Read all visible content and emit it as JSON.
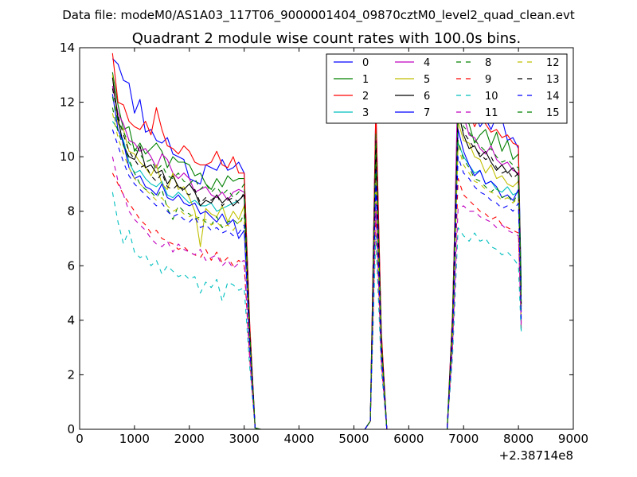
{
  "chart_data": {
    "type": "line",
    "suptitle": "Data file: modeM0/AS1A03_117T06_9000001404_09870cztM0_level2_quad_clean.evt",
    "title": "Quadrant 2 module wise count rates with 100.0s bins.",
    "xlabel": "",
    "ylabel": "",
    "x_offset_label": "+2.38714e8",
    "xlim": [
      0,
      9000
    ],
    "ylim": [
      0,
      14
    ],
    "xticks": [
      0,
      1000,
      2000,
      3000,
      4000,
      5000,
      6000,
      7000,
      8000,
      9000
    ],
    "yticks": [
      0,
      2,
      4,
      6,
      8,
      10,
      12,
      14
    ],
    "grid": false,
    "legend_position": "top-right",
    "legend_columns": 4,
    "x": [
      600,
      700,
      800,
      900,
      1000,
      1100,
      1200,
      1300,
      1400,
      1500,
      1600,
      1700,
      1800,
      1900,
      2000,
      2100,
      2200,
      2300,
      2400,
      2500,
      2600,
      2700,
      2800,
      2900,
      3000,
      3100,
      3200,
      3300,
      5200,
      5300,
      5400,
      5500,
      5600,
      5700,
      6700,
      6800,
      6900,
      7000,
      7100,
      7200,
      7300,
      7400,
      7500,
      7600,
      7700,
      7800,
      7900,
      8000,
      8050
    ],
    "series": [
      {
        "name": "0",
        "color": "#0000ff",
        "dash": "solid",
        "values": [
          13.6,
          13.4,
          12.8,
          12.7,
          11.6,
          12.1,
          10.9,
          11.0,
          10.6,
          10.5,
          10.7,
          10.1,
          10.0,
          9.9,
          9.2,
          9.1,
          9.0,
          9.7,
          9.6,
          9.5,
          9.9,
          9.5,
          9.6,
          9.8,
          9.4,
          3.8,
          0.05,
          0.0,
          0.0,
          0.3,
          11.8,
          3.5,
          0.0,
          0.0,
          0.0,
          4.3,
          12.1,
          11.9,
          11.3,
          11.6,
          11.1,
          11.4,
          11.0,
          11.5,
          11.4,
          10.6,
          10.7,
          10.3,
          5.3
        ]
      },
      {
        "name": "1",
        "color": "#008000",
        "dash": "solid",
        "values": [
          13.1,
          11.9,
          11.0,
          11.1,
          10.2,
          10.5,
          10.1,
          10.3,
          10.5,
          10.2,
          9.6,
          10.0,
          9.8,
          9.8,
          9.7,
          9.3,
          9.4,
          9.0,
          8.8,
          9.2,
          8.9,
          9.3,
          9.1,
          9.2,
          9.2,
          3.6,
          0.05,
          0.0,
          0.0,
          0.3,
          11.1,
          3.4,
          0.0,
          0.0,
          0.0,
          4.1,
          11.9,
          11.4,
          11.2,
          10.5,
          10.8,
          11.0,
          10.4,
          10.9,
          10.2,
          10.6,
          9.9,
          10.1,
          5.1
        ]
      },
      {
        "name": "2",
        "color": "#ff0000",
        "dash": "solid",
        "values": [
          13.8,
          12.0,
          11.9,
          11.3,
          11.1,
          11.0,
          11.3,
          10.8,
          11.8,
          11.0,
          10.4,
          10.3,
          10.1,
          10.4,
          10.2,
          9.8,
          9.7,
          9.7,
          9.8,
          10.2,
          9.7,
          9.6,
          10.0,
          9.4,
          9.4,
          3.9,
          0.05,
          0.0,
          0.0,
          0.3,
          11.9,
          3.6,
          0.0,
          0.0,
          0.0,
          4.3,
          12.4,
          11.8,
          11.7,
          11.1,
          11.5,
          11.2,
          10.9,
          11.0,
          10.7,
          10.8,
          10.5,
          10.4,
          3.9
        ]
      },
      {
        "name": "3",
        "color": "#00bfbf",
        "dash": "solid",
        "values": [
          11.3,
          11.0,
          10.6,
          9.8,
          9.4,
          9.5,
          9.2,
          9.0,
          8.9,
          9.1,
          8.6,
          8.5,
          8.7,
          8.5,
          8.3,
          8.4,
          8.2,
          8.2,
          8.3,
          8.0,
          8.1,
          8.2,
          8.3,
          8.4,
          8.6,
          3.3,
          0.05,
          0.0,
          0.0,
          0.3,
          9.8,
          3.0,
          0.0,
          0.0,
          0.0,
          3.7,
          10.5,
          10.0,
          9.7,
          9.4,
          9.5,
          9.0,
          9.1,
          8.8,
          8.7,
          8.9,
          8.6,
          8.7,
          3.6
        ]
      },
      {
        "name": "4",
        "color": "#bf00bf",
        "dash": "solid",
        "values": [
          12.6,
          11.6,
          11.2,
          10.6,
          10.5,
          10.2,
          10.3,
          10.0,
          9.6,
          10.1,
          9.9,
          9.4,
          9.2,
          9.4,
          9.2,
          8.7,
          8.8,
          8.9,
          8.6,
          8.5,
          8.7,
          8.4,
          8.7,
          8.8,
          8.7,
          3.5,
          0.05,
          0.0,
          0.0,
          0.3,
          10.8,
          3.2,
          0.0,
          0.0,
          0.0,
          4.0,
          13.2,
          11.5,
          10.8,
          10.7,
          10.3,
          10.1,
          10.4,
          9.9,
          9.7,
          9.8,
          9.5,
          9.4,
          4.6
        ]
      },
      {
        "name": "5",
        "color": "#bfbf00",
        "dash": "solid",
        "values": [
          13.0,
          11.2,
          11.0,
          10.2,
          10.1,
          9.8,
          9.6,
          9.3,
          9.7,
          9.0,
          8.8,
          9.4,
          8.8,
          8.9,
          8.5,
          8.0,
          6.7,
          8.1,
          7.9,
          7.8,
          8.2,
          7.6,
          8.0,
          7.7,
          8.2,
          3.4,
          0.05,
          0.0,
          0.0,
          0.3,
          10.1,
          3.1,
          0.0,
          0.0,
          0.0,
          3.8,
          11.3,
          10.6,
          10.5,
          10.0,
          9.9,
          9.4,
          9.7,
          9.2,
          9.3,
          9.0,
          8.9,
          9.1,
          4.4
        ]
      },
      {
        "name": "6",
        "color": "#000000",
        "dash": "solid",
        "values": [
          12.9,
          11.4,
          10.4,
          10.0,
          9.9,
          10.4,
          9.6,
          9.7,
          9.4,
          9.5,
          9.0,
          9.3,
          8.9,
          8.8,
          9.0,
          8.7,
          8.2,
          8.4,
          8.3,
          8.6,
          8.3,
          8.5,
          8.2,
          8.4,
          8.6,
          3.5,
          0.05,
          0.0,
          0.0,
          0.3,
          10.6,
          3.2,
          0.0,
          0.0,
          0.0,
          3.9,
          11.7,
          10.8,
          10.3,
          10.4,
          10.0,
          10.2,
          9.8,
          9.5,
          9.7,
          9.4,
          9.6,
          9.3,
          4.5
        ]
      },
      {
        "name": "7",
        "color": "#0000ff",
        "dash": "solid",
        "values": [
          12.3,
          11.0,
          10.5,
          9.6,
          9.2,
          9.3,
          8.9,
          8.8,
          8.6,
          9.0,
          8.5,
          8.4,
          8.6,
          8.3,
          8.2,
          8.3,
          7.9,
          8.0,
          7.8,
          7.6,
          7.9,
          7.5,
          7.7,
          7.0,
          7.3,
          3.1,
          0.05,
          0.0,
          0.0,
          0.3,
          9.5,
          2.9,
          0.0,
          0.0,
          0.0,
          3.6,
          11.0,
          10.2,
          9.7,
          9.3,
          9.5,
          9.0,
          9.1,
          8.9,
          8.5,
          8.6,
          8.4,
          8.8,
          4.3
        ]
      },
      {
        "name": "8",
        "color": "#008000",
        "dash": "dashed",
        "values": [
          11.8,
          10.9,
          10.4,
          9.9,
          9.4,
          9.0,
          8.8,
          8.7,
          8.5,
          8.8,
          8.1,
          7.7,
          8.2,
          8.0,
          7.9,
          7.7,
          7.8,
          7.6,
          7.5,
          7.8,
          7.4,
          7.6,
          7.7,
          7.5,
          7.9,
          3.2,
          0.05,
          0.0,
          0.0,
          0.3,
          9.4,
          2.9,
          0.0,
          0.0,
          0.0,
          3.5,
          10.6,
          9.9,
          9.6,
          9.2,
          9.1,
          8.9,
          8.7,
          8.9,
          8.5,
          8.6,
          8.3,
          8.7,
          4.2
        ]
      },
      {
        "name": "9",
        "color": "#ff0000",
        "dash": "dashed",
        "values": [
          9.4,
          9.0,
          8.6,
          8.3,
          8.0,
          7.7,
          7.5,
          7.2,
          7.3,
          7.0,
          6.9,
          6.8,
          6.6,
          6.7,
          6.5,
          6.4,
          6.3,
          6.6,
          6.2,
          6.5,
          6.1,
          6.3,
          6.0,
          6.2,
          6.0,
          2.6,
          0.05,
          0.0,
          0.0,
          0.3,
          8.0,
          2.4,
          0.0,
          0.0,
          0.0,
          3.0,
          9.2,
          8.6,
          8.4,
          8.2,
          8.0,
          7.9,
          7.7,
          7.8,
          7.5,
          7.4,
          7.3,
          7.2,
          3.7
        ]
      },
      {
        "name": "10",
        "color": "#00bfbf",
        "dash": "dashed",
        "values": [
          8.7,
          7.6,
          6.8,
          7.3,
          6.5,
          6.3,
          6.4,
          6.0,
          6.2,
          5.7,
          6.0,
          5.8,
          5.6,
          5.7,
          5.5,
          5.6,
          5.0,
          5.4,
          5.2,
          5.5,
          4.7,
          5.4,
          5.3,
          5.1,
          5.2,
          2.3,
          0.05,
          0.0,
          0.0,
          0.3,
          7.1,
          2.2,
          0.0,
          0.0,
          0.0,
          2.7,
          7.4,
          7.1,
          6.9,
          7.2,
          6.9,
          7.0,
          6.7,
          6.6,
          6.4,
          6.5,
          6.3,
          6.0,
          3.5
        ]
      },
      {
        "name": "11",
        "color": "#bf00bf",
        "dash": "dashed",
        "values": [
          10.0,
          9.1,
          8.6,
          8.0,
          7.7,
          7.5,
          7.3,
          7.0,
          6.8,
          6.7,
          6.9,
          6.5,
          6.8,
          6.6,
          6.5,
          6.4,
          6.6,
          6.2,
          6.3,
          6.4,
          6.0,
          6.2,
          5.9,
          6.1,
          6.2,
          2.6,
          0.05,
          0.0,
          0.0,
          0.3,
          8.3,
          2.5,
          0.0,
          0.0,
          0.0,
          3.1,
          8.1,
          8.2,
          8.0,
          8.0,
          7.8,
          7.7,
          7.6,
          7.4,
          7.5,
          7.3,
          7.2,
          7.1,
          3.8
        ]
      },
      {
        "name": "12",
        "color": "#bfbf00",
        "dash": "dashed",
        "values": [
          11.6,
          10.7,
          10.1,
          9.6,
          9.2,
          9.0,
          8.8,
          8.6,
          8.4,
          8.5,
          8.2,
          8.0,
          8.1,
          7.9,
          7.8,
          7.9,
          7.6,
          7.7,
          7.5,
          7.6,
          7.4,
          7.5,
          7.3,
          7.6,
          7.7,
          3.1,
          0.05,
          0.0,
          0.0,
          0.3,
          9.2,
          2.8,
          0.0,
          0.0,
          0.0,
          3.5,
          10.4,
          9.7,
          9.4,
          9.1,
          9.0,
          8.8,
          8.7,
          8.6,
          8.4,
          8.5,
          8.3,
          8.5,
          4.1
        ]
      },
      {
        "name": "13",
        "color": "#000000",
        "dash": "dashed",
        "values": [
          12.5,
          11.5,
          10.8,
          10.2,
          9.9,
          9.6,
          9.7,
          9.3,
          9.1,
          9.4,
          8.9,
          8.8,
          9.0,
          8.7,
          8.6,
          8.8,
          8.3,
          8.5,
          8.4,
          8.6,
          8.2,
          8.4,
          8.5,
          8.3,
          8.7,
          3.5,
          0.05,
          0.0,
          0.0,
          0.3,
          10.4,
          3.2,
          0.0,
          0.0,
          0.0,
          3.9,
          11.5,
          10.9,
          10.6,
          10.3,
          10.1,
          9.9,
          10.0,
          9.6,
          9.4,
          9.5,
          9.2,
          9.4,
          4.6
        ]
      },
      {
        "name": "14",
        "color": "#0000ff",
        "dash": "dashed",
        "values": [
          11.0,
          10.4,
          9.8,
          9.3,
          9.0,
          8.8,
          8.6,
          8.4,
          8.2,
          8.3,
          8.0,
          7.8,
          7.9,
          7.7,
          7.6,
          7.8,
          7.4,
          7.5,
          7.3,
          7.4,
          7.2,
          7.3,
          7.1,
          7.2,
          7.5,
          3.0,
          0.05,
          0.0,
          0.0,
          0.3,
          9.0,
          2.8,
          0.0,
          0.0,
          0.0,
          3.4,
          10.0,
          9.4,
          9.2,
          8.9,
          8.7,
          8.6,
          8.4,
          8.3,
          8.1,
          8.2,
          8.0,
          8.3,
          4.0
        ]
      },
      {
        "name": "15",
        "color": "#008000",
        "dash": "dashed",
        "values": [
          12.2,
          11.3,
          10.9,
          10.5,
          10.3,
          10.1,
          9.8,
          9.9,
          9.5,
          9.7,
          9.3,
          9.2,
          9.4,
          9.1,
          9.0,
          9.2,
          8.8,
          9.0,
          8.7,
          8.9,
          8.6,
          8.8,
          8.5,
          8.7,
          9.0,
          3.6,
          0.05,
          0.0,
          0.0,
          0.3,
          10.9,
          3.3,
          0.0,
          0.0,
          0.0,
          4.0,
          11.8,
          11.1,
          10.9,
          10.6,
          10.4,
          10.2,
          10.3,
          10.0,
          9.8,
          9.9,
          9.7,
          9.6,
          4.7
        ]
      }
    ]
  }
}
